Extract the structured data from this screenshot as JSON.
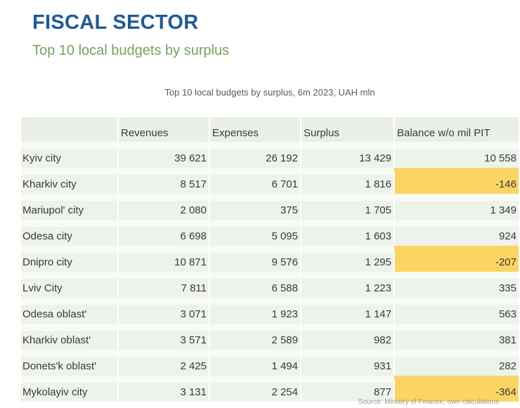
{
  "page": {
    "title": "FISCAL SECTOR",
    "subtitle": "Top 10 local budgets by surplus",
    "source_note": "Source: Ministry of Finance, own calculations"
  },
  "colors": {
    "title_blue": "#1e5a96",
    "subtitle_green": "#74a45b",
    "cell_green": "#edf2ea",
    "header_green": "#e9efe6",
    "highlight_yellow": "#fbd563"
  },
  "table": {
    "caption": "Top 10 local budgets by surplus, 6m 2023, UAH mln",
    "columns": [
      "",
      "Revenues",
      "Expenses",
      "Surplus",
      "Balance w/o mil PIT"
    ],
    "rows": [
      {
        "label": "Kyiv city",
        "revenues": "39 621",
        "expenses": "26 192",
        "surplus": "13 429",
        "balance": "10 558",
        "balance_highlight": false
      },
      {
        "label": "Kharkiv city",
        "revenues": "8 517",
        "expenses": "6 701",
        "surplus": "1 816",
        "balance": "-146",
        "balance_highlight": true
      },
      {
        "label": "Mariupol' city",
        "revenues": "2 080",
        "expenses": "375",
        "surplus": "1 705",
        "balance": "1 349",
        "balance_highlight": false
      },
      {
        "label": "Odesa city",
        "revenues": "6 698",
        "expenses": "5 095",
        "surplus": "1 603",
        "balance": "924",
        "balance_highlight": false
      },
      {
        "label": "Dnipro city",
        "revenues": "10 871",
        "expenses": "9 576",
        "surplus": "1 295",
        "balance": "-207",
        "balance_highlight": true
      },
      {
        "label": "Lviv City",
        "revenues": "7 811",
        "expenses": "6 588",
        "surplus": "1 223",
        "balance": "335",
        "balance_highlight": false
      },
      {
        "label": "Odesa oblast'",
        "revenues": "3 071",
        "expenses": "1 923",
        "surplus": "1 147",
        "balance": "563",
        "balance_highlight": false
      },
      {
        "label": "Kharkiv oblast'",
        "revenues": "3 571",
        "expenses": "2 589",
        "surplus": "982",
        "balance": "381",
        "balance_highlight": false
      },
      {
        "label": "Donets'k oblast'",
        "revenues": "2 425",
        "expenses": "1 494",
        "surplus": "931",
        "balance": "282",
        "balance_highlight": false
      },
      {
        "label": "Mykolayiv city",
        "revenues": "3 131",
        "expenses": "2 254",
        "surplus": "877",
        "balance": "-364",
        "balance_highlight": true
      }
    ]
  }
}
